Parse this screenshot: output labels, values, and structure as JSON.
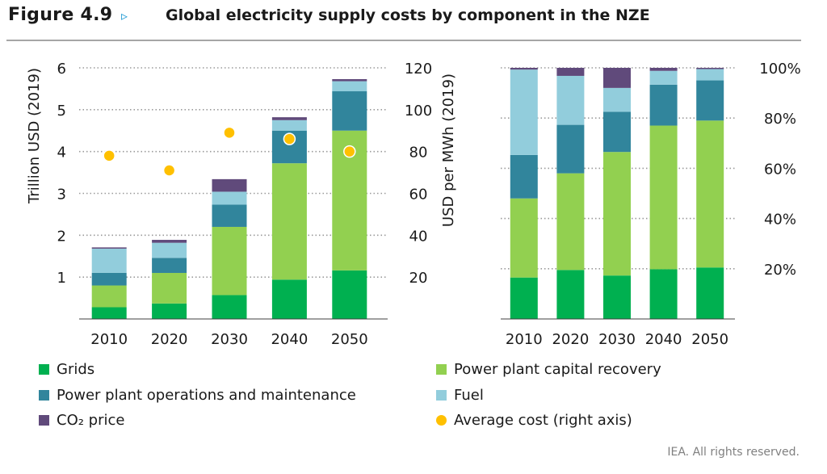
{
  "header": {
    "figure_number": "Figure 4.9",
    "arrow": "▹",
    "title": "Global electricity supply costs by component in the NZE"
  },
  "colors": {
    "Grids": "#00b050",
    "Power plant capital recovery": "#92d050",
    "Power plant operations and maintenance": "#31859c",
    "Fuel": "#92cddc",
    "CO₂ price": "#604a7b",
    "Average cost (right axis)": "#ffc000"
  },
  "legend": {
    "items": [
      {
        "label": "Grids",
        "shape": "square"
      },
      {
        "label": "Power plant capital recovery",
        "shape": "square"
      },
      {
        "label": "Power plant operations and maintenance",
        "shape": "square"
      },
      {
        "label": "Fuel",
        "shape": "square"
      },
      {
        "label": "CO₂ price",
        "shape": "square"
      },
      {
        "label": "Average cost (right axis)",
        "shape": "circle"
      }
    ]
  },
  "chart_data": [
    {
      "type": "bar",
      "stacked": true,
      "categories": [
        "2010",
        "2020",
        "2030",
        "2040",
        "2050"
      ],
      "ylabel": "Trillion USD (2019)",
      "ylim": [
        0,
        6
      ],
      "yticks": [
        "1",
        "2",
        "3",
        "4",
        "5",
        "6"
      ],
      "y2label": "USD per MWh (2019)",
      "y2lim": [
        0,
        120
      ],
      "y2ticks": [
        "20",
        "40",
        "60",
        "80",
        "100",
        "120"
      ],
      "grid": true,
      "series": [
        {
          "name": "Grids",
          "values": [
            0.28,
            0.37,
            0.57,
            0.94,
            1.16
          ]
        },
        {
          "name": "Power plant capital recovery",
          "values": [
            0.52,
            0.73,
            1.63,
            2.78,
            3.34
          ]
        },
        {
          "name": "Power plant operations and maintenance",
          "values": [
            0.3,
            0.36,
            0.53,
            0.78,
            0.94
          ]
        },
        {
          "name": "Fuel",
          "values": [
            0.58,
            0.36,
            0.31,
            0.25,
            0.24
          ]
        },
        {
          "name": "CO₂ price",
          "values": [
            0.03,
            0.07,
            0.3,
            0.07,
            0.05
          ]
        }
      ],
      "overlay": {
        "name": "Average cost (right axis)",
        "axis": "right",
        "values": [
          78,
          71,
          89,
          86,
          80
        ]
      }
    },
    {
      "type": "bar",
      "stacked": true,
      "percent": true,
      "categories": [
        "2010",
        "2020",
        "2030",
        "2040",
        "2050"
      ],
      "ylim": [
        0,
        100
      ],
      "yticks": [
        "20%",
        "40%",
        "60%",
        "80%",
        "100%"
      ],
      "grid": true,
      "series": [
        {
          "name": "Grids",
          "values": [
            16.5,
            19.5,
            17.3,
            19.8,
            20.5
          ]
        },
        {
          "name": "Power plant capital recovery",
          "values": [
            31.5,
            38.5,
            49.2,
            57.2,
            58.5
          ]
        },
        {
          "name": "Power plant operations and maintenance",
          "values": [
            17.3,
            19.3,
            16.0,
            16.3,
            16.0
          ]
        },
        {
          "name": "Fuel",
          "values": [
            34.0,
            19.5,
            9.5,
            5.5,
            4.5
          ]
        },
        {
          "name": "CO₂ price",
          "values": [
            0.7,
            3.2,
            8.0,
            1.2,
            0.5
          ]
        }
      ]
    }
  ],
  "footer": {
    "credit": "IEA. All rights reserved."
  }
}
